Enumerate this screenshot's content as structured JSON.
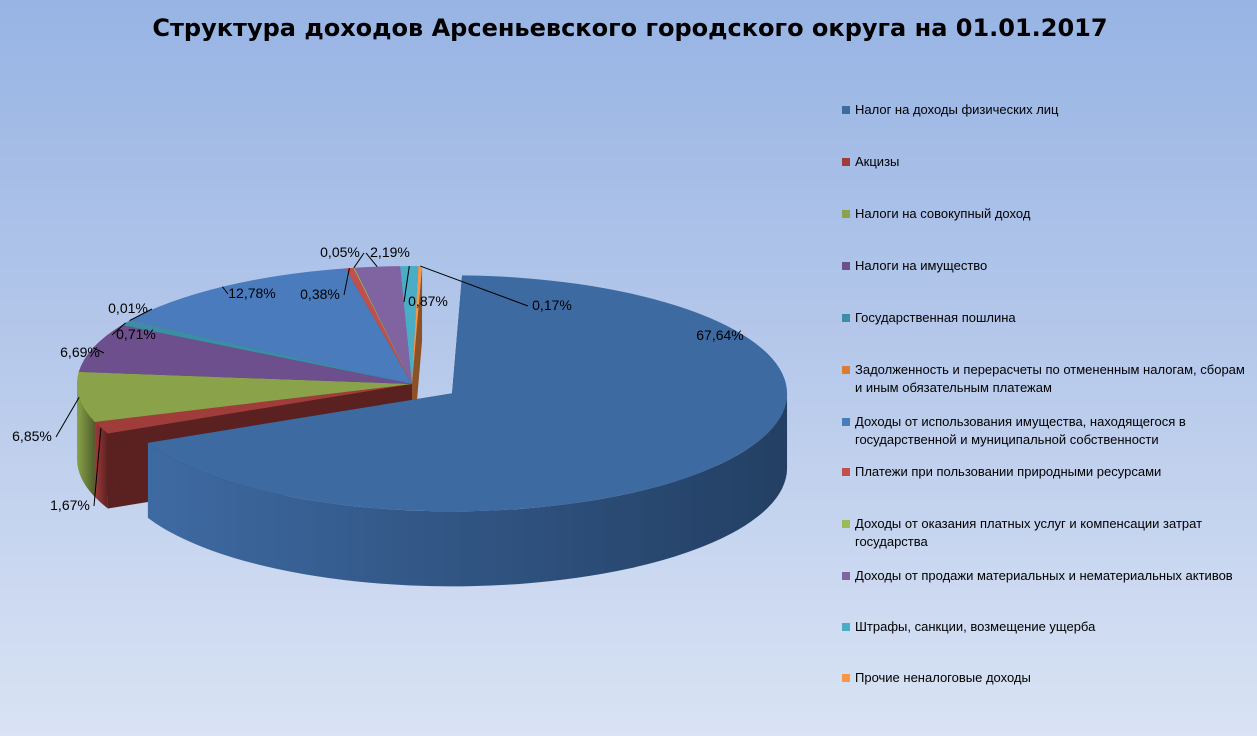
{
  "chart_data": {
    "type": "pie",
    "title": "Структура доходов Арсеньевского городского округа на 01.01.2017",
    "slices": [
      {
        "name": "Налог на доходы физических лиц",
        "label": "67,64%",
        "value": 67.64,
        "color": "#3e6aa2",
        "side": "#233f63"
      },
      {
        "name": "Акцизы",
        "label": "1,67%",
        "value": 1.67,
        "color": "#a03c3a",
        "side": "#5a2120"
      },
      {
        "name": "Налоги на совокупный доход",
        "label": "6,85%",
        "value": 6.85,
        "color": "#8aa24a",
        "side": "#4f5e2a"
      },
      {
        "name": "Налоги на имущество",
        "label": "6,69%",
        "value": 6.69,
        "color": "#6e4f8e",
        "side": "#3e2c52"
      },
      {
        "name": "Государственная пошлина",
        "label": "0,71%",
        "value": 0.71,
        "color": "#3b8ea6",
        "side": "#20525f"
      },
      {
        "name": "Задолженность и перерасчеты по отмененным налогам, сборам и иным обязательным платежам",
        "label": "0,01%",
        "value": 0.01,
        "color": "#dd7c30",
        "side": "#7c4418"
      },
      {
        "name": "Доходы от использования имущества, находящегося в государственной и муниципальной собственности",
        "label": "12,78%",
        "value": 12.78,
        "color": "#4a7cbd",
        "side": "#28446b"
      },
      {
        "name": "Платежи при пользовании природными ресурсами",
        "label": "0,38%",
        "value": 0.38,
        "color": "#c0504d",
        "side": "#6c2b2a"
      },
      {
        "name": "Доходы от оказания платных услуг и компенсации затрат государства",
        "label": "0,05%",
        "value": 0.05,
        "color": "#9bbb59",
        "side": "#566a30"
      },
      {
        "name": "Доходы от продажи материальных и нематериальных активов",
        "label": "2,19%",
        "value": 2.19,
        "color": "#8064a2",
        "side": "#47385b"
      },
      {
        "name": "Штрафы, санкции, возмещение ущерба",
        "label": "0,87%",
        "value": 0.87,
        "color": "#4bacc6",
        "side": "#2a6070"
      },
      {
        "name": "Прочие неналоговые доходы",
        "label": "0,17%",
        "value": 0.17,
        "color": "#f79646",
        "side": "#8a5226"
      }
    ],
    "legend_position": "right"
  }
}
